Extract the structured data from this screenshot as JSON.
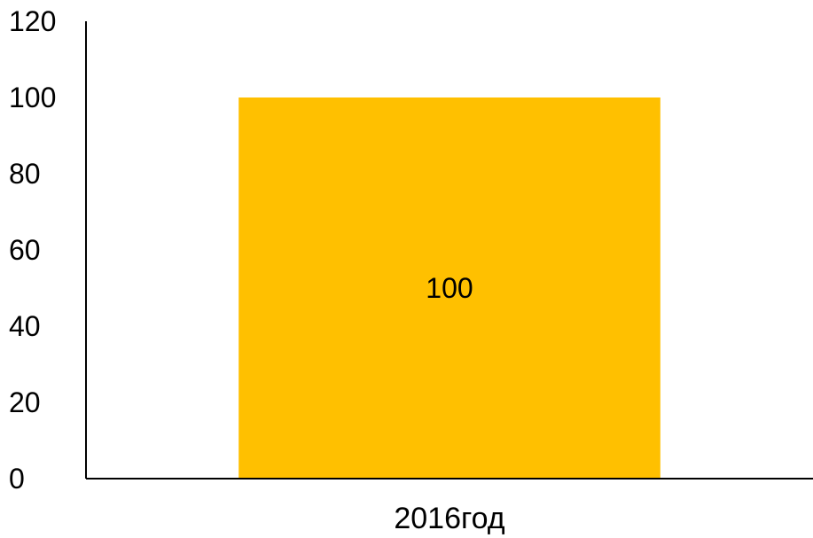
{
  "chart_data": {
    "type": "bar",
    "categories": [
      "2016год"
    ],
    "values": [
      100
    ],
    "data_labels": [
      "100"
    ],
    "title": "",
    "xlabel": "",
    "ylabel": "",
    "ylim": [
      0,
      120
    ],
    "yticks": [
      0,
      20,
      40,
      60,
      80,
      100,
      120
    ],
    "grid": false,
    "legend": "none",
    "bar_color": "#FFC000"
  }
}
